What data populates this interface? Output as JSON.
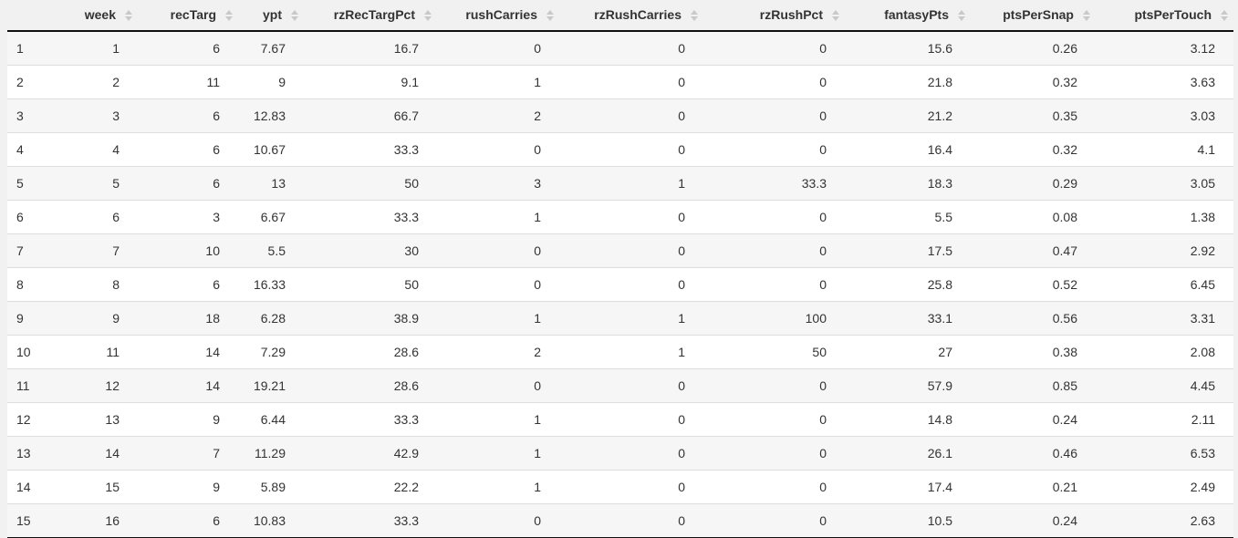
{
  "table": {
    "columns": [
      {
        "key": "index",
        "label": "",
        "sortable": false,
        "align": "left"
      },
      {
        "key": "week",
        "label": "week",
        "sortable": true,
        "align": "right"
      },
      {
        "key": "recTarg",
        "label": "recTarg",
        "sortable": true,
        "align": "right"
      },
      {
        "key": "ypt",
        "label": "ypt",
        "sortable": true,
        "align": "right"
      },
      {
        "key": "rzRecTargPct",
        "label": "rzRecTargPct",
        "sortable": true,
        "align": "right"
      },
      {
        "key": "rushCarries",
        "label": "rushCarries",
        "sortable": true,
        "align": "right"
      },
      {
        "key": "rzRushCarries",
        "label": "rzRushCarries",
        "sortable": true,
        "align": "right"
      },
      {
        "key": "rzRushPct",
        "label": "rzRushPct",
        "sortable": true,
        "align": "right"
      },
      {
        "key": "fantasyPts",
        "label": "fantasyPts",
        "sortable": true,
        "align": "right"
      },
      {
        "key": "ptsPerSnap",
        "label": "ptsPerSnap",
        "sortable": true,
        "align": "right"
      },
      {
        "key": "ptsPerTouch",
        "label": "ptsPerTouch",
        "sortable": true,
        "align": "right"
      }
    ],
    "rows": [
      [
        "1",
        "1",
        "6",
        "7.67",
        "16.7",
        "0",
        "0",
        "0",
        "15.6",
        "0.26",
        "3.12"
      ],
      [
        "2",
        "2",
        "11",
        "9",
        "9.1",
        "1",
        "0",
        "0",
        "21.8",
        "0.32",
        "3.63"
      ],
      [
        "3",
        "3",
        "6",
        "12.83",
        "66.7",
        "2",
        "0",
        "0",
        "21.2",
        "0.35",
        "3.03"
      ],
      [
        "4",
        "4",
        "6",
        "10.67",
        "33.3",
        "0",
        "0",
        "0",
        "16.4",
        "0.32",
        "4.1"
      ],
      [
        "5",
        "5",
        "6",
        "13",
        "50",
        "3",
        "1",
        "33.3",
        "18.3",
        "0.29",
        "3.05"
      ],
      [
        "6",
        "6",
        "3",
        "6.67",
        "33.3",
        "1",
        "0",
        "0",
        "5.5",
        "0.08",
        "1.38"
      ],
      [
        "7",
        "7",
        "10",
        "5.5",
        "30",
        "0",
        "0",
        "0",
        "17.5",
        "0.47",
        "2.92"
      ],
      [
        "8",
        "8",
        "6",
        "16.33",
        "50",
        "0",
        "0",
        "0",
        "25.8",
        "0.52",
        "6.45"
      ],
      [
        "9",
        "9",
        "18",
        "6.28",
        "38.9",
        "1",
        "1",
        "100",
        "33.1",
        "0.56",
        "3.31"
      ],
      [
        "10",
        "11",
        "14",
        "7.29",
        "28.6",
        "2",
        "1",
        "50",
        "27",
        "0.38",
        "2.08"
      ],
      [
        "11",
        "12",
        "14",
        "19.21",
        "28.6",
        "0",
        "0",
        "0",
        "57.9",
        "0.85",
        "4.45"
      ],
      [
        "12",
        "13",
        "9",
        "6.44",
        "33.3",
        "1",
        "0",
        "0",
        "14.8",
        "0.24",
        "2.11"
      ],
      [
        "13",
        "14",
        "7",
        "11.29",
        "42.9",
        "1",
        "0",
        "0",
        "26.1",
        "0.46",
        "6.53"
      ],
      [
        "14",
        "15",
        "9",
        "5.89",
        "22.2",
        "1",
        "0",
        "0",
        "17.4",
        "0.21",
        "2.49"
      ],
      [
        "15",
        "16",
        "6",
        "10.83",
        "33.3",
        "0",
        "0",
        "0",
        "10.5",
        "0.24",
        "2.63"
      ]
    ]
  },
  "icons": {
    "sort": "sort-both-icon"
  },
  "colors": {
    "page_bg": "#f1f1f1",
    "row_stripe": "#f6f6f6",
    "row_plain": "#ffffff",
    "header_border": "#111111",
    "table_bottom_border": "#111111",
    "row_divider": "#dddddd",
    "text": "#333333",
    "sort_icon": "#c9c9c9"
  }
}
